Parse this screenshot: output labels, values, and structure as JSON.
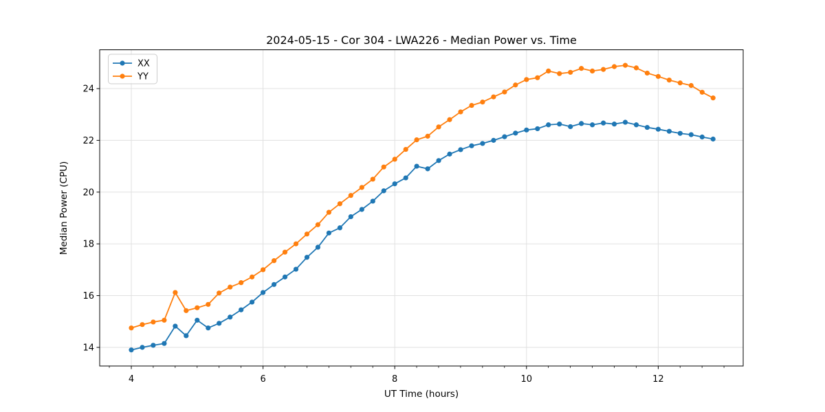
{
  "figure": {
    "background": "#ffffff",
    "text_color": "#000000",
    "grid_color": "#e0e0e0",
    "spine_color": "#000000"
  },
  "legend": {
    "entries": [
      "XX",
      "YY"
    ],
    "position": "upper left"
  },
  "chart_data": {
    "type": "line",
    "title": "2024-05-15 - Cor 304 - LWA226 - Median Power vs. Time",
    "xlabel": "UT Time (hours)",
    "ylabel": "Median Power (CPU)",
    "xlim": [
      3.52,
      13.29
    ],
    "ylim": [
      13.28,
      25.5
    ],
    "x_ticks": [
      4,
      6,
      8,
      10,
      12
    ],
    "y_ticks": [
      14,
      16,
      18,
      20,
      22,
      24
    ],
    "x_minor_tick_step": 0.3333,
    "grid": true,
    "marker": "o",
    "legend_position": "upper left",
    "x": [
      4.0,
      4.167,
      4.333,
      4.5,
      4.667,
      4.833,
      5.0,
      5.167,
      5.333,
      5.5,
      5.667,
      5.833,
      6.0,
      6.167,
      6.333,
      6.5,
      6.667,
      6.833,
      7.0,
      7.167,
      7.333,
      7.5,
      7.667,
      7.833,
      8.0,
      8.167,
      8.333,
      8.5,
      8.667,
      8.833,
      9.0,
      9.167,
      9.333,
      9.5,
      9.667,
      9.833,
      10.0,
      10.167,
      10.333,
      10.5,
      10.667,
      10.833,
      11.0,
      11.167,
      11.333,
      11.5,
      11.667,
      11.833,
      12.0,
      12.167,
      12.333,
      12.5,
      12.667,
      12.833
    ],
    "series": [
      {
        "name": "XX",
        "color": "#1f77b4",
        "values": [
          13.9,
          14.0,
          14.08,
          14.15,
          14.82,
          14.45,
          15.05,
          14.75,
          14.93,
          15.17,
          15.45,
          15.75,
          16.12,
          16.43,
          16.72,
          17.02,
          17.48,
          17.87,
          18.42,
          18.62,
          19.05,
          19.33,
          19.65,
          20.05,
          20.32,
          20.55,
          21.0,
          20.9,
          21.22,
          21.47,
          21.64,
          21.79,
          21.88,
          22.0,
          22.14,
          22.28,
          22.4,
          22.45,
          22.6,
          22.63,
          22.53,
          22.65,
          22.6,
          22.67,
          22.63,
          22.7,
          22.6,
          22.5,
          22.43,
          22.35,
          22.27,
          22.22,
          22.13,
          22.05
        ]
      },
      {
        "name": "YY",
        "color": "#ff7f0e",
        "values": [
          14.75,
          14.88,
          14.98,
          15.05,
          16.12,
          15.42,
          15.53,
          15.66,
          16.1,
          16.33,
          16.5,
          16.72,
          17.0,
          17.35,
          17.68,
          18.0,
          18.38,
          18.74,
          19.22,
          19.55,
          19.87,
          20.18,
          20.5,
          20.97,
          21.27,
          21.65,
          22.02,
          22.16,
          22.52,
          22.8,
          23.1,
          23.35,
          23.48,
          23.68,
          23.87,
          24.14,
          24.35,
          24.42,
          24.68,
          24.58,
          24.63,
          24.78,
          24.68,
          24.74,
          24.85,
          24.9,
          24.8,
          24.6,
          24.47,
          24.33,
          24.22,
          24.12,
          23.86,
          23.64
        ]
      }
    ]
  }
}
